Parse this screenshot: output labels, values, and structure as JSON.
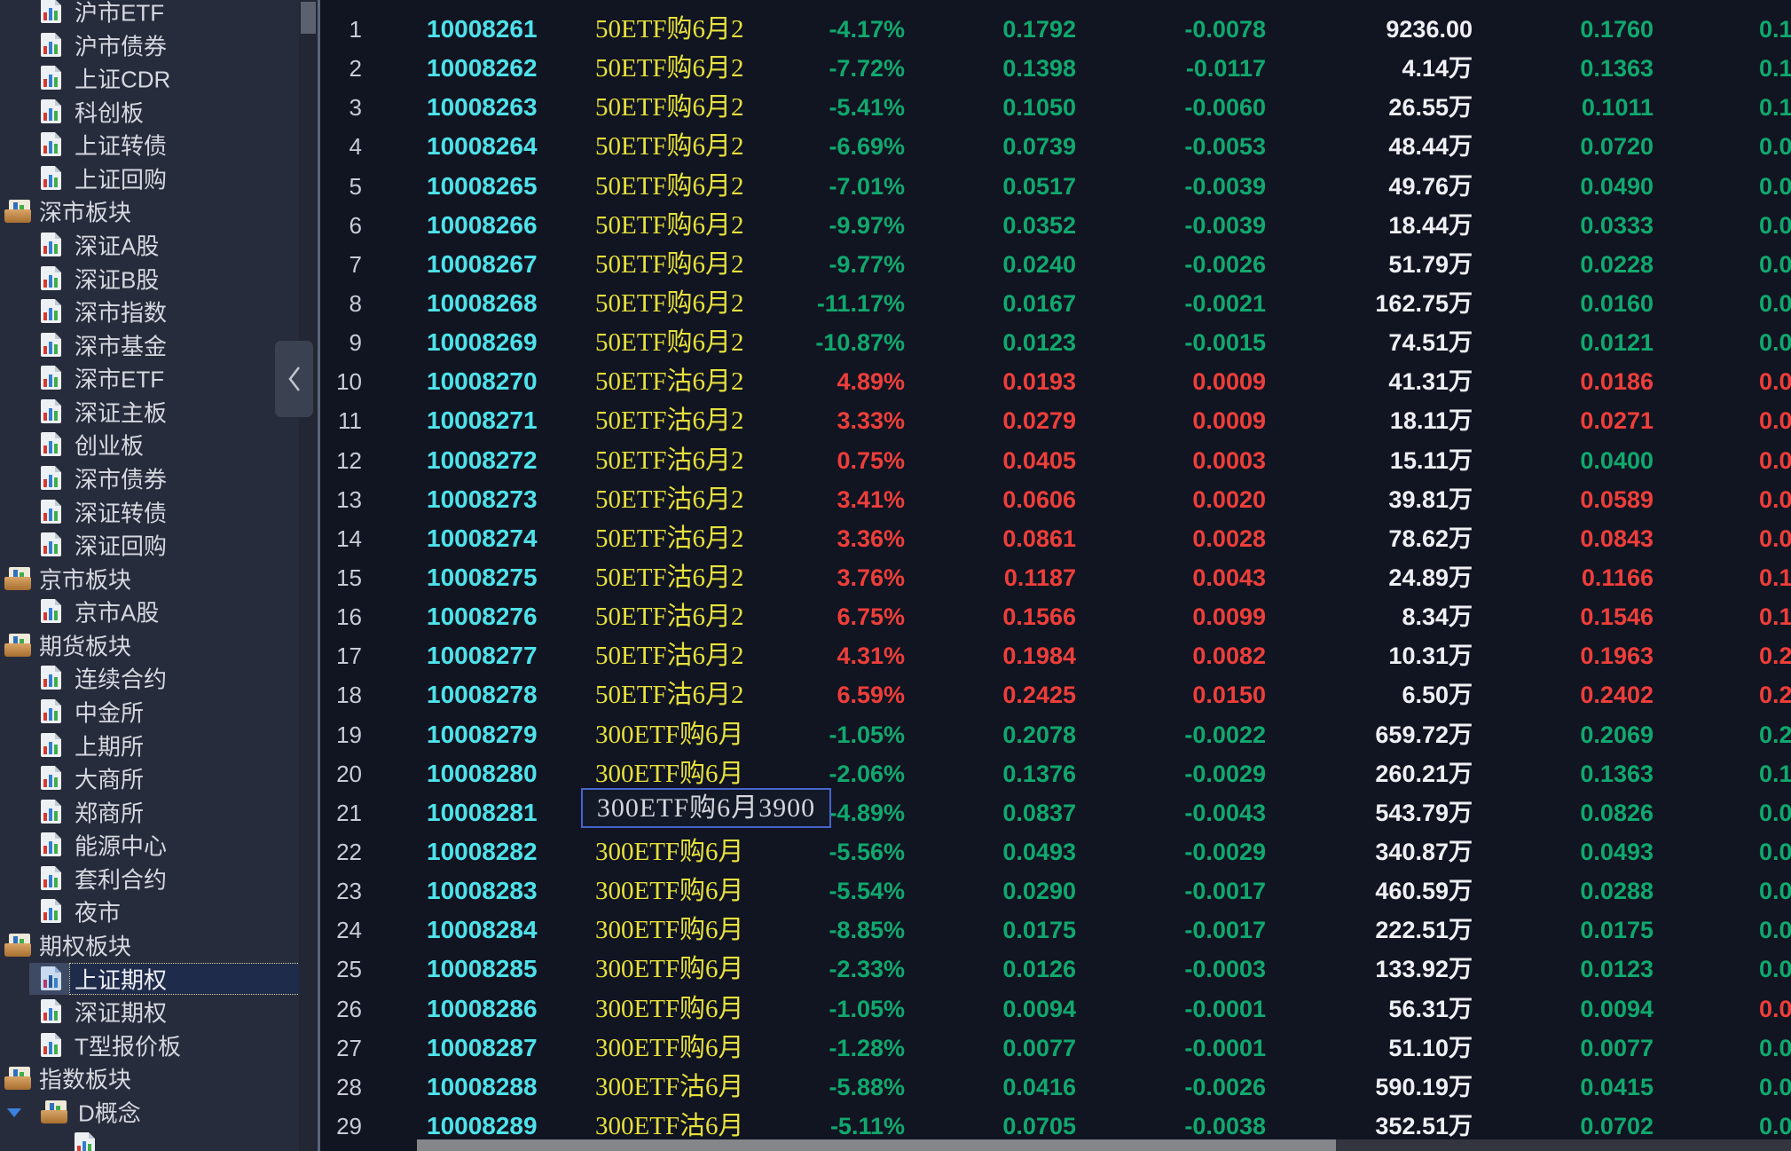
{
  "colors": {
    "up": "#ee3e3a",
    "down": "#10a86e",
    "code": "#4ee2ea",
    "name": "#e6e13c",
    "volume": "#eef0f4",
    "row_num": "#c9ccd4",
    "tooltip_border": "#4666cc",
    "selected_bg": "#1f2b4a",
    "sidebar_bg": "#272c3c",
    "table_bg": "#111421"
  },
  "icons": {
    "leaf": "chart-document-icon",
    "group": "chart-drawer-icon",
    "expand": "triangle-down-icon",
    "collapse": "chevron-left-icon"
  },
  "sidebar": {
    "items": [
      {
        "label": "沪市ETF",
        "type": "leaf"
      },
      {
        "label": "沪市债券",
        "type": "leaf"
      },
      {
        "label": "上证CDR",
        "type": "leaf"
      },
      {
        "label": "科创板",
        "type": "leaf"
      },
      {
        "label": "上证转债",
        "type": "leaf"
      },
      {
        "label": "上证回购",
        "type": "leaf"
      },
      {
        "label": "深市板块",
        "type": "group"
      },
      {
        "label": "深证A股",
        "type": "leaf"
      },
      {
        "label": "深证B股",
        "type": "leaf"
      },
      {
        "label": "深市指数",
        "type": "leaf"
      },
      {
        "label": "深市基金",
        "type": "leaf"
      },
      {
        "label": "深市ETF",
        "type": "leaf"
      },
      {
        "label": "深证主板",
        "type": "leaf"
      },
      {
        "label": "创业板",
        "type": "leaf"
      },
      {
        "label": "深市债券",
        "type": "leaf"
      },
      {
        "label": "深证转债",
        "type": "leaf"
      },
      {
        "label": "深证回购",
        "type": "leaf"
      },
      {
        "label": "京市板块",
        "type": "group"
      },
      {
        "label": "京市A股",
        "type": "leaf"
      },
      {
        "label": "期货板块",
        "type": "group"
      },
      {
        "label": "连续合约",
        "type": "leaf"
      },
      {
        "label": "中金所",
        "type": "leaf"
      },
      {
        "label": "上期所",
        "type": "leaf"
      },
      {
        "label": "大商所",
        "type": "leaf"
      },
      {
        "label": "郑商所",
        "type": "leaf"
      },
      {
        "label": "能源中心",
        "type": "leaf"
      },
      {
        "label": "套利合约",
        "type": "leaf"
      },
      {
        "label": "夜市",
        "type": "leaf"
      },
      {
        "label": "期权板块",
        "type": "group"
      },
      {
        "label": "上证期权",
        "type": "leaf",
        "selected": true
      },
      {
        "label": "深证期权",
        "type": "leaf"
      },
      {
        "label": "T型报价板",
        "type": "leaf"
      },
      {
        "label": "指数板块",
        "type": "group"
      },
      {
        "label": "D概念",
        "type": "group2",
        "expanded": true
      },
      {
        "label": "",
        "type": "partial"
      }
    ]
  },
  "table": {
    "tooltip": {
      "text": "300ETF购6月3900",
      "row": 21
    },
    "rows": [
      {
        "num": "1",
        "code": "10008261",
        "name": "50ETF购6月2",
        "pct": "-4.17%",
        "price": "0.1792",
        "chg": "-0.0078",
        "vol": "9236.00",
        "bid": "0.1760",
        "last": "0.1",
        "dir": "down"
      },
      {
        "num": "2",
        "code": "10008262",
        "name": "50ETF购6月2",
        "pct": "-7.72%",
        "price": "0.1398",
        "chg": "-0.0117",
        "vol": "4.14万",
        "bid": "0.1363",
        "last": "0.1",
        "dir": "down"
      },
      {
        "num": "3",
        "code": "10008263",
        "name": "50ETF购6月2",
        "pct": "-5.41%",
        "price": "0.1050",
        "chg": "-0.0060",
        "vol": "26.55万",
        "bid": "0.1011",
        "last": "0.1",
        "dir": "down"
      },
      {
        "num": "4",
        "code": "10008264",
        "name": "50ETF购6月2",
        "pct": "-6.69%",
        "price": "0.0739",
        "chg": "-0.0053",
        "vol": "48.44万",
        "bid": "0.0720",
        "last": "0.0",
        "dir": "down"
      },
      {
        "num": "5",
        "code": "10008265",
        "name": "50ETF购6月2",
        "pct": "-7.01%",
        "price": "0.0517",
        "chg": "-0.0039",
        "vol": "49.76万",
        "bid": "0.0490",
        "last": "0.0",
        "dir": "down"
      },
      {
        "num": "6",
        "code": "10008266",
        "name": "50ETF购6月2",
        "pct": "-9.97%",
        "price": "0.0352",
        "chg": "-0.0039",
        "vol": "18.44万",
        "bid": "0.0333",
        "last": "0.0",
        "dir": "down"
      },
      {
        "num": "7",
        "code": "10008267",
        "name": "50ETF购6月2",
        "pct": "-9.77%",
        "price": "0.0240",
        "chg": "-0.0026",
        "vol": "51.79万",
        "bid": "0.0228",
        "last": "0.0",
        "dir": "down"
      },
      {
        "num": "8",
        "code": "10008268",
        "name": "50ETF购6月2",
        "pct": "-11.17%",
        "price": "0.0167",
        "chg": "-0.0021",
        "vol": "162.75万",
        "bid": "0.0160",
        "last": "0.0",
        "dir": "down"
      },
      {
        "num": "9",
        "code": "10008269",
        "name": "50ETF购6月2",
        "pct": "-10.87%",
        "price": "0.0123",
        "chg": "-0.0015",
        "vol": "74.51万",
        "bid": "0.0121",
        "last": "0.0",
        "dir": "down"
      },
      {
        "num": "10",
        "code": "10008270",
        "name": "50ETF沽6月2",
        "pct": "4.89%",
        "price": "0.0193",
        "chg": "0.0009",
        "vol": "41.31万",
        "bid": "0.0186",
        "last": "0.0",
        "dir": "up"
      },
      {
        "num": "11",
        "code": "10008271",
        "name": "50ETF沽6月2",
        "pct": "3.33%",
        "price": "0.0279",
        "chg": "0.0009",
        "vol": "18.11万",
        "bid": "0.0271",
        "last": "0.0",
        "dir": "up"
      },
      {
        "num": "12",
        "code": "10008272",
        "name": "50ETF沽6月2",
        "pct": "0.75%",
        "price": "0.0405",
        "chg": "0.0003",
        "vol": "15.11万",
        "bid": "0.0400",
        "last": "0.0",
        "dir": "up",
        "bid_dir": "down"
      },
      {
        "num": "13",
        "code": "10008273",
        "name": "50ETF沽6月2",
        "pct": "3.41%",
        "price": "0.0606",
        "chg": "0.0020",
        "vol": "39.81万",
        "bid": "0.0589",
        "last": "0.0",
        "dir": "up"
      },
      {
        "num": "14",
        "code": "10008274",
        "name": "50ETF沽6月2",
        "pct": "3.36%",
        "price": "0.0861",
        "chg": "0.0028",
        "vol": "78.62万",
        "bid": "0.0843",
        "last": "0.0",
        "dir": "up"
      },
      {
        "num": "15",
        "code": "10008275",
        "name": "50ETF沽6月2",
        "pct": "3.76%",
        "price": "0.1187",
        "chg": "0.0043",
        "vol": "24.89万",
        "bid": "0.1166",
        "last": "0.1",
        "dir": "up"
      },
      {
        "num": "16",
        "code": "10008276",
        "name": "50ETF沽6月2",
        "pct": "6.75%",
        "price": "0.1566",
        "chg": "0.0099",
        "vol": "8.34万",
        "bid": "0.1546",
        "last": "0.1",
        "dir": "up"
      },
      {
        "num": "17",
        "code": "10008277",
        "name": "50ETF沽6月2",
        "pct": "4.31%",
        "price": "0.1984",
        "chg": "0.0082",
        "vol": "10.31万",
        "bid": "0.1963",
        "last": "0.2",
        "dir": "up"
      },
      {
        "num": "18",
        "code": "10008278",
        "name": "50ETF沽6月2",
        "pct": "6.59%",
        "price": "0.2425",
        "chg": "0.0150",
        "vol": "6.50万",
        "bid": "0.2402",
        "last": "0.2",
        "dir": "up"
      },
      {
        "num": "19",
        "code": "10008279",
        "name": "300ETF购6月",
        "pct": "-1.05%",
        "price": "0.2078",
        "chg": "-0.0022",
        "vol": "659.72万",
        "bid": "0.2069",
        "last": "0.2",
        "dir": "down"
      },
      {
        "num": "20",
        "code": "10008280",
        "name": "300ETF购6月",
        "pct": "-2.06%",
        "price": "0.1376",
        "chg": "-0.0029",
        "vol": "260.21万",
        "bid": "0.1363",
        "last": "0.1",
        "dir": "down"
      },
      {
        "num": "21",
        "code": "10008281",
        "name": "300ETF购6月",
        "pct": "-4.89%",
        "price": "0.0837",
        "chg": "-0.0043",
        "vol": "543.79万",
        "bid": "0.0826",
        "last": "0.0",
        "dir": "down"
      },
      {
        "num": "22",
        "code": "10008282",
        "name": "300ETF购6月",
        "pct": "-5.56%",
        "price": "0.0493",
        "chg": "-0.0029",
        "vol": "340.87万",
        "bid": "0.0493",
        "last": "0.0",
        "dir": "down"
      },
      {
        "num": "23",
        "code": "10008283",
        "name": "300ETF购6月",
        "pct": "-5.54%",
        "price": "0.0290",
        "chg": "-0.0017",
        "vol": "460.59万",
        "bid": "0.0288",
        "last": "0.0",
        "dir": "down"
      },
      {
        "num": "24",
        "code": "10008284",
        "name": "300ETF购6月",
        "pct": "-8.85%",
        "price": "0.0175",
        "chg": "-0.0017",
        "vol": "222.51万",
        "bid": "0.0175",
        "last": "0.0",
        "dir": "down"
      },
      {
        "num": "25",
        "code": "10008285",
        "name": "300ETF购6月",
        "pct": "-2.33%",
        "price": "0.0126",
        "chg": "-0.0003",
        "vol": "133.92万",
        "bid": "0.0123",
        "last": "0.0",
        "dir": "down"
      },
      {
        "num": "26",
        "code": "10008286",
        "name": "300ETF购6月",
        "pct": "-1.05%",
        "price": "0.0094",
        "chg": "-0.0001",
        "vol": "56.31万",
        "bid": "0.0094",
        "last": "0.0",
        "dir": "down",
        "last_dir": "up"
      },
      {
        "num": "27",
        "code": "10008287",
        "name": "300ETF购6月",
        "pct": "-1.28%",
        "price": "0.0077",
        "chg": "-0.0001",
        "vol": "51.10万",
        "bid": "0.0077",
        "last": "0.0",
        "dir": "down"
      },
      {
        "num": "28",
        "code": "10008288",
        "name": "300ETF沽6月",
        "pct": "-5.88%",
        "price": "0.0416",
        "chg": "-0.0026",
        "vol": "590.19万",
        "bid": "0.0415",
        "last": "0.0",
        "dir": "down"
      },
      {
        "num": "29",
        "code": "10008289",
        "name": "300ETF沽6月",
        "pct": "-5.11%",
        "price": "0.0705",
        "chg": "-0.0038",
        "vol": "352.51万",
        "bid": "0.0702",
        "last": "0.0",
        "dir": "down"
      }
    ]
  }
}
